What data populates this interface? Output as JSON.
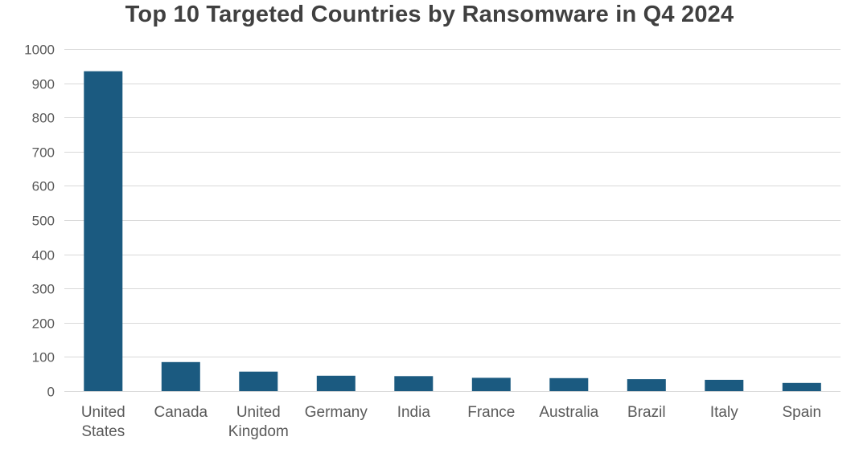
{
  "chart_data": {
    "type": "bar",
    "title": "Top 10 Targeted Countries by Ransomware in Q4 2024",
    "xlabel": "",
    "ylabel": "",
    "categories": [
      [
        "United",
        "States"
      ],
      [
        "Canada"
      ],
      [
        "United",
        "Kingdom"
      ],
      [
        "Germany"
      ],
      [
        "India"
      ],
      [
        "France"
      ],
      [
        "Australia"
      ],
      [
        "Brazil"
      ],
      [
        "Italy"
      ],
      [
        "Spain"
      ]
    ],
    "values": [
      935,
      85,
      57,
      45,
      44,
      39,
      38,
      35,
      33,
      24
    ],
    "ylim": [
      0,
      1000
    ],
    "yticks": [
      0,
      100,
      200,
      300,
      400,
      500,
      600,
      700,
      800,
      900,
      1000
    ],
    "grid": true,
    "legend": "none",
    "bar_color": "#1b5a80"
  }
}
